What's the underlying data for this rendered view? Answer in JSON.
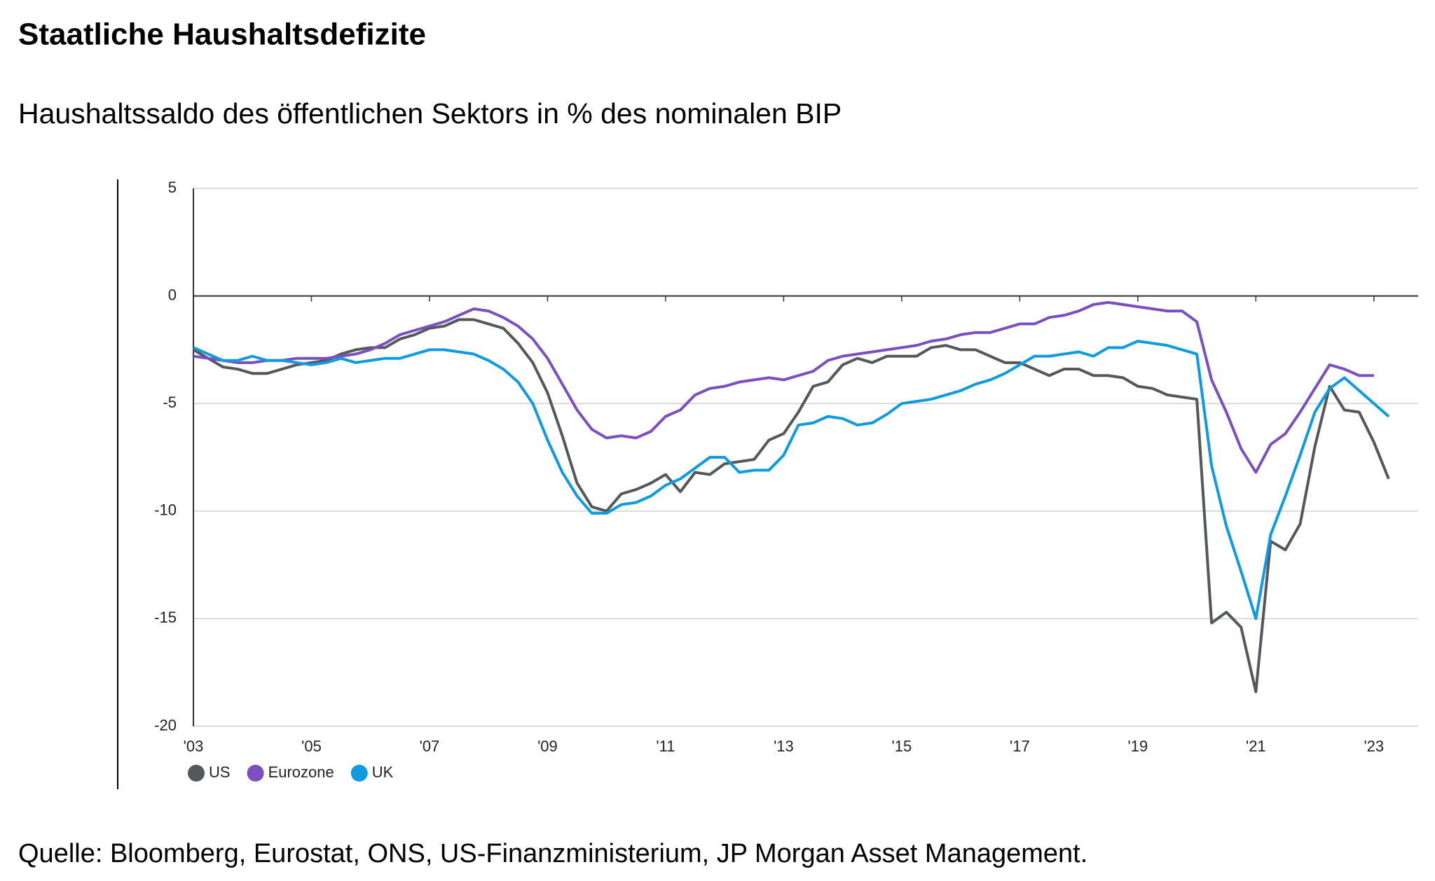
{
  "chart_data": {
    "type": "line",
    "title": "Staatliche Haushaltsdefizite",
    "subtitle": "Haushaltssaldo des öffentlichen Sektors in % des nominalen BIP",
    "source": "Quelle: Bloomberg, Eurostat, ONS, US-Finanzministerium, JP Morgan Asset Management.",
    "x": [
      2003,
      2003.25,
      2003.5,
      2003.75,
      2004,
      2004.25,
      2004.5,
      2004.75,
      2005,
      2005.25,
      2005.5,
      2005.75,
      2006,
      2006.25,
      2006.5,
      2006.75,
      2007,
      2007.25,
      2007.5,
      2007.75,
      2008,
      2008.25,
      2008.5,
      2008.75,
      2009,
      2009.25,
      2009.5,
      2009.75,
      2010,
      2010.25,
      2010.5,
      2010.75,
      2011,
      2011.25,
      2011.5,
      2011.75,
      2012,
      2012.25,
      2012.5,
      2012.75,
      2013,
      2013.25,
      2013.5,
      2013.75,
      2014,
      2014.25,
      2014.5,
      2014.75,
      2015,
      2015.25,
      2015.5,
      2015.75,
      2016,
      2016.25,
      2016.5,
      2016.75,
      2017,
      2017.25,
      2017.5,
      2017.75,
      2018,
      2018.25,
      2018.5,
      2018.75,
      2019,
      2019.25,
      2019.5,
      2019.75,
      2020,
      2020.25,
      2020.5,
      2020.75,
      2021,
      2021.25,
      2021.5,
      2021.75,
      2022,
      2022.25,
      2022.5,
      2022.75,
      2023,
      2023.25
    ],
    "series": [
      {
        "name": "US",
        "color": "#55585b",
        "values": [
          -2.5,
          -2.9,
          -3.3,
          -3.4,
          -3.6,
          -3.6,
          -3.4,
          -3.2,
          -3.1,
          -3.0,
          -2.7,
          -2.5,
          -2.4,
          -2.4,
          -2.0,
          -1.8,
          -1.5,
          -1.4,
          -1.1,
          -1.1,
          -1.3,
          -1.5,
          -2.2,
          -3.1,
          -4.5,
          -6.5,
          -8.7,
          -9.8,
          -10.0,
          -9.2,
          -9.0,
          -8.7,
          -8.3,
          -9.1,
          -8.2,
          -8.3,
          -7.8,
          -7.7,
          -7.6,
          -6.7,
          -6.4,
          -5.4,
          -4.2,
          -4.0,
          -3.2,
          -2.9,
          -3.1,
          -2.8,
          -2.8,
          -2.8,
          -2.4,
          -2.3,
          -2.5,
          -2.5,
          -2.8,
          -3.1,
          -3.1,
          -3.4,
          -3.7,
          -3.4,
          -3.4,
          -3.7,
          -3.7,
          -3.8,
          -4.2,
          -4.3,
          -4.6,
          -4.7,
          -4.8,
          -15.2,
          -14.7,
          -15.4,
          -18.4,
          -11.4,
          -11.8,
          -10.6,
          -7.0,
          -4.2,
          -5.3,
          -5.4,
          -6.8,
          -8.5
        ]
      },
      {
        "name": "Eurozone",
        "color": "#7b4fbf",
        "values": [
          -2.8,
          -2.9,
          -3.0,
          -3.1,
          -3.1,
          -3.0,
          -3.0,
          -2.9,
          -2.9,
          -2.9,
          -2.8,
          -2.7,
          -2.5,
          -2.2,
          -1.8,
          -1.6,
          -1.4,
          -1.2,
          -0.9,
          -0.6,
          -0.7,
          -1.0,
          -1.4,
          -2.0,
          -2.9,
          -4.1,
          -5.3,
          -6.2,
          -6.6,
          -6.5,
          -6.6,
          -6.3,
          -5.6,
          -5.3,
          -4.6,
          -4.3,
          -4.2,
          -4.0,
          -3.9,
          -3.8,
          -3.9,
          -3.7,
          -3.5,
          -3.0,
          -2.8,
          -2.7,
          -2.6,
          -2.5,
          -2.4,
          -2.3,
          -2.1,
          -2.0,
          -1.8,
          -1.7,
          -1.7,
          -1.5,
          -1.3,
          -1.3,
          -1.0,
          -0.9,
          -0.7,
          -0.4,
          -0.3,
          -0.4,
          -0.5,
          -0.6,
          -0.7,
          -0.7,
          -1.2,
          -3.9,
          -5.4,
          -7.1,
          -8.2,
          -6.9,
          -6.4,
          -5.4,
          -4.3,
          -3.2,
          -3.4,
          -3.7,
          -3.7,
          null
        ]
      },
      {
        "name": "UK",
        "color": "#0f9be0",
        "values": [
          -2.4,
          -2.7,
          -3.0,
          -3.0,
          -2.8,
          -3.0,
          -3.0,
          -3.1,
          -3.2,
          -3.1,
          -2.9,
          -3.1,
          -3.0,
          -2.9,
          -2.9,
          -2.7,
          -2.5,
          -2.5,
          -2.6,
          -2.7,
          -3.0,
          -3.4,
          -4.0,
          -5.0,
          -6.7,
          -8.2,
          -9.3,
          -10.1,
          -10.1,
          -9.7,
          -9.6,
          -9.3,
          -8.8,
          -8.5,
          -8.0,
          -7.5,
          -7.5,
          -8.2,
          -8.1,
          -8.1,
          -7.4,
          -6.0,
          -5.9,
          -5.6,
          -5.7,
          -6.0,
          -5.9,
          -5.5,
          -5.0,
          -4.9,
          -4.8,
          -4.6,
          -4.4,
          -4.1,
          -3.9,
          -3.6,
          -3.2,
          -2.8,
          -2.8,
          -2.7,
          -2.6,
          -2.8,
          -2.4,
          -2.4,
          -2.1,
          -2.2,
          -2.3,
          -2.5,
          -2.7,
          -7.9,
          -10.7,
          -12.8,
          -15.0,
          -11.1,
          -9.3,
          -7.4,
          -5.4,
          -4.3,
          -3.8,
          -4.4,
          -5.0,
          -5.6
        ]
      }
    ],
    "xlim": [
      2003,
      2023.75
    ],
    "xticks": [
      {
        "value": 2003,
        "label": "'03"
      },
      {
        "value": 2005,
        "label": "'05"
      },
      {
        "value": 2007,
        "label": "'07"
      },
      {
        "value": 2009,
        "label": "'09"
      },
      {
        "value": 2011,
        "label": "'11"
      },
      {
        "value": 2013,
        "label": "'13"
      },
      {
        "value": 2015,
        "label": "'15"
      },
      {
        "value": 2017,
        "label": "'17"
      },
      {
        "value": 2019,
        "label": "'19"
      },
      {
        "value": 2021,
        "label": "'21"
      },
      {
        "value": 2023,
        "label": "'23"
      }
    ],
    "ylim": [
      -20,
      5
    ],
    "yticks": [
      5,
      0,
      -5,
      -10,
      -15,
      -20
    ],
    "grid": true,
    "legend": "bottom-left"
  }
}
